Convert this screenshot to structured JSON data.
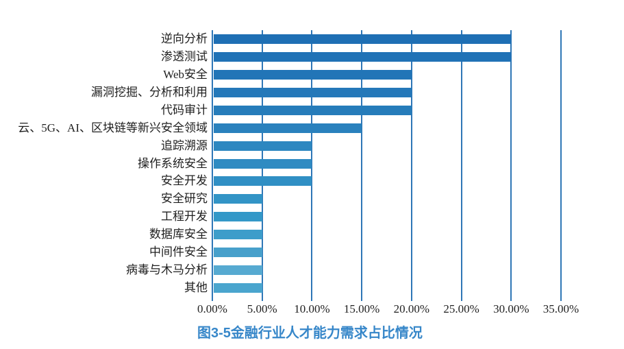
{
  "chart_data": {
    "type": "bar",
    "orientation": "horizontal",
    "title": "",
    "caption": "图3-5金融行业人才能力需求占比情况",
    "caption_color": "#3787c9",
    "categories": [
      "逆向分析",
      "渗透测试",
      "Web安全",
      "漏洞挖掘、分析和利用",
      "代码审计",
      "云、5G、AI、区块链等新兴安全领域",
      "追踪溯源",
      "操作系统安全",
      "安全开发",
      "安全研究",
      "工程开发",
      "数据库安全",
      "中间件安全",
      "病毒与木马分析",
      "其他"
    ],
    "values": [
      30,
      30,
      20,
      20,
      20,
      15,
      10,
      10,
      10,
      5,
      5,
      5,
      5,
      5,
      5
    ],
    "value_unit": "%",
    "bar_colors": [
      "#1e6fb4",
      "#2072b6",
      "#2275b7",
      "#2478b9",
      "#267cba",
      "#2a81bd",
      "#2d87c0",
      "#2f8bc2",
      "#308fc4",
      "#3294c6",
      "#3398c8",
      "#3d9dca",
      "#47a0cb",
      "#56aad1",
      "#4aa5ce"
    ],
    "x_ticks": [
      "0.00%",
      "5.00%",
      "10.00%",
      "15.00%",
      "20.00%",
      "25.00%",
      "30.00%",
      "35.00%"
    ],
    "xlim": [
      0,
      35
    ],
    "x_tick_step": 5,
    "grid": true,
    "gridline_color": "#2e76b6",
    "legend": "none",
    "text_color": "#1f1f1f",
    "background_color": "#ffffff"
  }
}
